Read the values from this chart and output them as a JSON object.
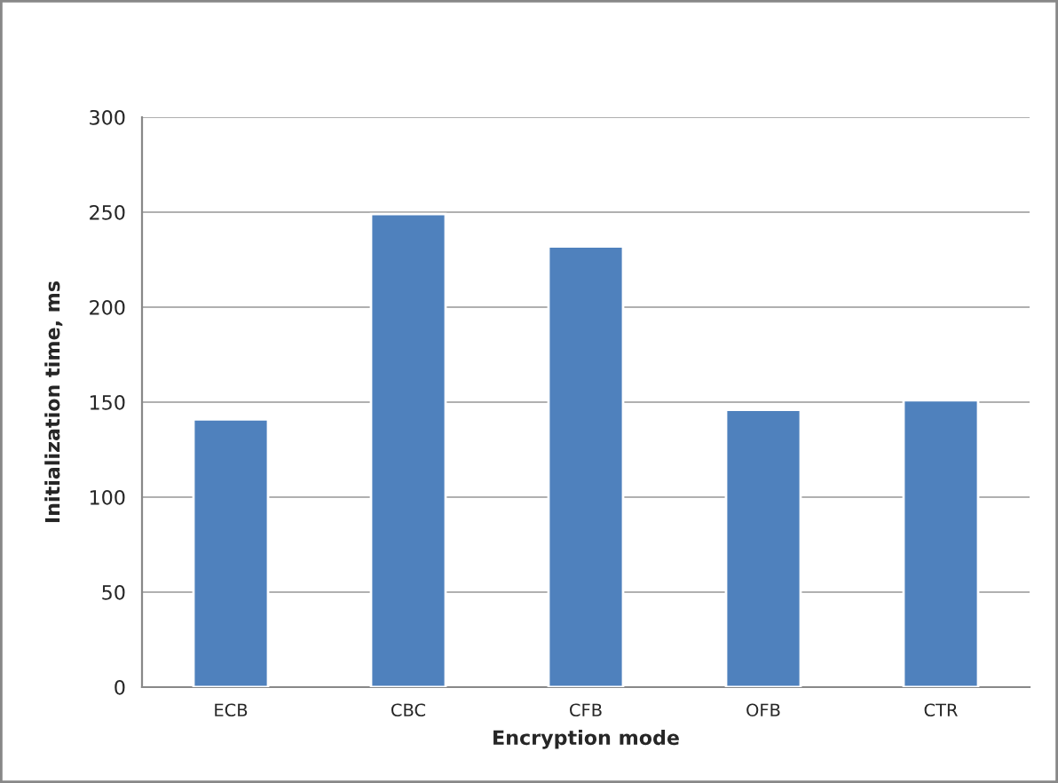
{
  "chart_data": {
    "type": "bar",
    "xlabel": "Encryption mode",
    "ylabel": "Initialization time, ms",
    "categories": [
      "ECB",
      "CBC",
      "CFB",
      "OFB",
      "CTR"
    ],
    "values": [
      141,
      249,
      232,
      146,
      151
    ],
    "color": "#4f81bd",
    "ylim": [
      0,
      300
    ],
    "yticks": [
      0,
      50,
      100,
      150,
      200,
      250,
      300
    ],
    "grid": "y",
    "legend": false
  }
}
